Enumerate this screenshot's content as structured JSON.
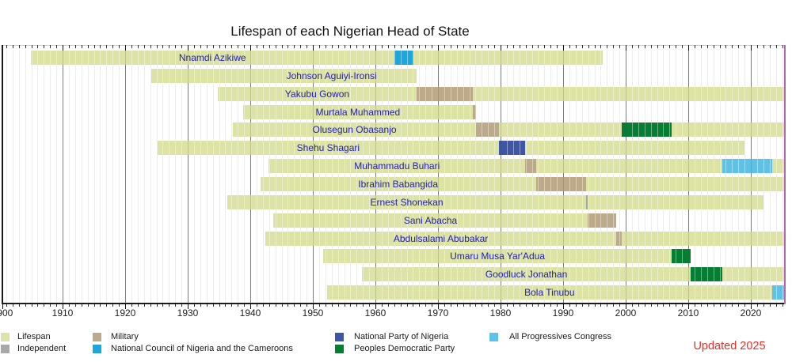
{
  "colors": {
    "lifespan": "#dde2a5",
    "independent": "#a8a8a8",
    "military": "#bcaa8b",
    "ncnc": "#1ca6d9",
    "npn": "#3d56a6",
    "pdp": "#077d33",
    "apc": "#5cc3e8",
    "name_text": "#2121b5",
    "updated_text": "#ee2b25",
    "right_border": "#b564b2"
  },
  "chart_data": {
    "type": "bar",
    "subtype": "lifespan-timeline-gantt",
    "title": "Lifespan of each Nigerian Head of State",
    "annotation": "Updated 2025",
    "grid": "on",
    "legend_position": "bottom",
    "x_axis": {
      "min": 1900,
      "max": 2025.5,
      "minor_tick_interval": 1,
      "major_tick_interval": 10,
      "tick_values": [
        1900,
        1910,
        1920,
        1930,
        1940,
        1950,
        1960,
        1970,
        1980,
        1990,
        2000,
        2010,
        2020
      ],
      "tick_labels": [
        "1900",
        "1910",
        "1920",
        "1930",
        "1940",
        "1950",
        "1960",
        "1970",
        "1980",
        "1990",
        "2000",
        "2010",
        "2020"
      ]
    },
    "people": [
      {
        "name": "Nnamdi Azikiwe",
        "born": 1904.9,
        "died": 1996.35,
        "terms": [
          {
            "party_key": "ncnc",
            "party": "National Council of Nigeria and the Cameroons",
            "start": 1963.0,
            "end": 1966.05
          }
        ]
      },
      {
        "name": "Johnson Aguiyi-Ironsi",
        "born": 1924.2,
        "died": 1966.55,
        "terms": []
      },
      {
        "name": "Yakubu Gowon",
        "born": 1934.8,
        "died": null,
        "terms": [
          {
            "party_key": "military",
            "party": "Military",
            "start": 1966.6,
            "end": 1975.55
          }
        ]
      },
      {
        "name": "Murtala Muhammed",
        "born": 1938.85,
        "died": 1976.1,
        "terms": [
          {
            "party_key": "military",
            "party": "Military",
            "start": 1975.55,
            "end": 1976.1
          }
        ]
      },
      {
        "name": "Olusegun Obasanjo",
        "born": 1937.2,
        "died": null,
        "terms": [
          {
            "party_key": "military",
            "party": "Military",
            "start": 1976.1,
            "end": 1979.75
          },
          {
            "party_key": "pdp",
            "party": "Peoples Democratic Party",
            "start": 1999.4,
            "end": 2007.4
          }
        ]
      },
      {
        "name": "Shehu Shagari",
        "born": 1925.15,
        "died": 2018.95,
        "terms": [
          {
            "party_key": "npn",
            "party": "National Party of Nigeria",
            "start": 1979.75,
            "end": 1983.95
          }
        ]
      },
      {
        "name": "Muhammadu Buhari",
        "born": 1942.95,
        "died": 2025.5,
        "terms": [
          {
            "party_key": "military",
            "party": "Military",
            "start": 1983.95,
            "end": 1985.65
          },
          {
            "party_key": "apc",
            "party": "All Progressives Congress",
            "start": 2015.4,
            "end": 2023.4
          }
        ]
      },
      {
        "name": "Ibrahim Babangida",
        "born": 1941.6,
        "died": null,
        "terms": [
          {
            "party_key": "military",
            "party": "Military",
            "start": 1985.65,
            "end": 1993.65
          }
        ]
      },
      {
        "name": "Ernest Shonekan",
        "born": 1936.35,
        "died": 2022.05,
        "terms": [
          {
            "party_key": "independent",
            "party": "Independent",
            "start": 1993.65,
            "end": 1993.9
          }
        ]
      },
      {
        "name": "Sani Abacha",
        "born": 1943.7,
        "died": 1998.45,
        "terms": [
          {
            "party_key": "military",
            "party": "Military",
            "start": 1993.9,
            "end": 1998.45
          }
        ]
      },
      {
        "name": "Abdulsalami Abubakar",
        "born": 1942.45,
        "died": null,
        "terms": [
          {
            "party_key": "military",
            "party": "Military",
            "start": 1998.45,
            "end": 1999.4
          }
        ]
      },
      {
        "name": "Umaru Musa Yar'Adua",
        "born": 1951.6,
        "died": 2010.35,
        "terms": [
          {
            "party_key": "pdp",
            "party": "Peoples Democratic Party",
            "start": 2007.4,
            "end": 2010.35
          }
        ]
      },
      {
        "name": "Goodluck Jonathan",
        "born": 1957.9,
        "died": null,
        "terms": [
          {
            "party_key": "pdp",
            "party": "Peoples Democratic Party",
            "start": 2010.35,
            "end": 2015.4
          }
        ]
      },
      {
        "name": "Bola Tinubu",
        "born": 1952.25,
        "died": null,
        "terms": [
          {
            "party_key": "apc",
            "party": "All Progressives Congress",
            "start": 2023.4,
            "end": 2025.5
          }
        ]
      }
    ],
    "legend": {
      "columns": [
        {
          "items": [
            {
              "label": "Lifespan",
              "key": "lifespan"
            },
            {
              "label": "Independent",
              "key": "independent"
            }
          ]
        },
        {
          "items": [
            {
              "label": "Military",
              "key": "military"
            },
            {
              "label": "National Council of Nigeria and the Cameroons",
              "key": "ncnc"
            }
          ]
        },
        {
          "items": [
            {
              "label": "National Party of Nigeria",
              "key": "npn"
            },
            {
              "label": "Peoples Democratic Party",
              "key": "pdp"
            }
          ]
        },
        {
          "items": [
            {
              "label": "All Progressives Congress",
              "key": "apc"
            }
          ]
        }
      ]
    }
  }
}
